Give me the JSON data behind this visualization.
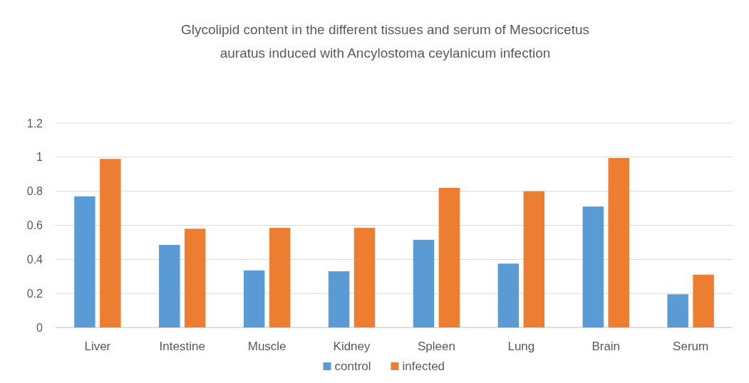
{
  "chart_data": {
    "type": "bar",
    "title": "Glycolipid content in the different tissues and serum of Mesocricetus auratus induced with Ancylostoma ceylanicum infection",
    "categories": [
      "Liver",
      "Intestine",
      "Muscle",
      "Kidney",
      "Spleen",
      "Lung",
      "Brain",
      "Serum"
    ],
    "series": [
      {
        "name": "control",
        "color": "#5b9bd5",
        "values": [
          0.77,
          0.485,
          0.335,
          0.33,
          0.515,
          0.375,
          0.71,
          0.195
        ]
      },
      {
        "name": "infected",
        "color": "#ed7d31",
        "values": [
          0.99,
          0.58,
          0.585,
          0.585,
          0.82,
          0.8,
          0.995,
          0.31
        ]
      }
    ],
    "ylim": [
      0,
      1.2
    ],
    "yticks": [
      0,
      0.2,
      0.4,
      0.6,
      0.8,
      1,
      1.2
    ],
    "grid": "y",
    "legend": "bottom"
  }
}
